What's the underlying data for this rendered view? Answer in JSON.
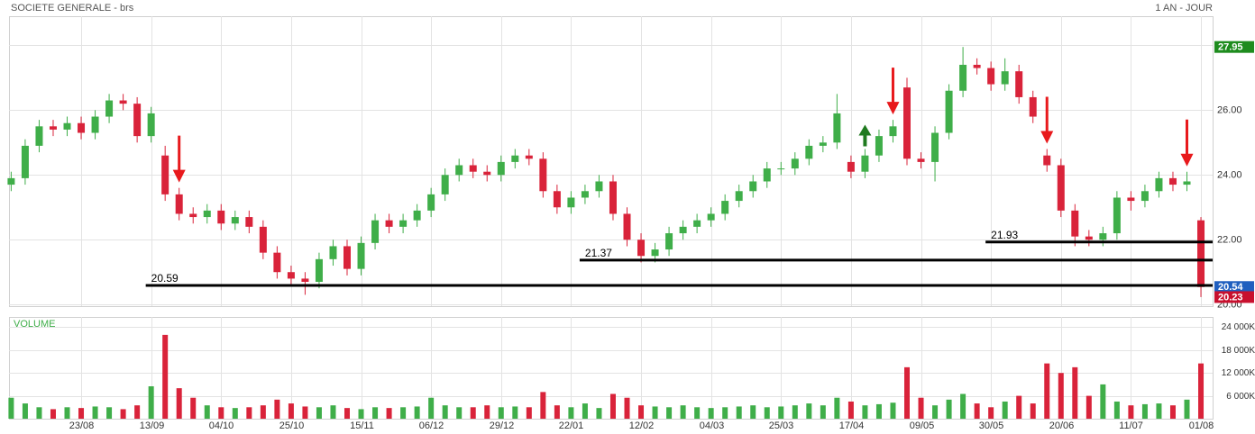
{
  "chart_data": {
    "type": "candlestick",
    "title": "SOCIETE GENERALE - brs",
    "period": "1 AN - JOUR",
    "volume_title": "VOLUME",
    "up_color": "#3fae49",
    "down_color": "#d9233a",
    "grid": true,
    "categories": [
      null,
      null,
      null,
      null,
      null,
      "23/08",
      null,
      null,
      null,
      null,
      "13/09",
      null,
      null,
      null,
      null,
      "04/10",
      null,
      null,
      null,
      null,
      "25/10",
      null,
      null,
      null,
      null,
      "15/11",
      null,
      null,
      null,
      null,
      "06/12",
      null,
      null,
      null,
      null,
      "29/12",
      null,
      null,
      null,
      null,
      "22/01",
      null,
      null,
      null,
      null,
      "12/02",
      null,
      null,
      null,
      null,
      "04/03",
      null,
      null,
      null,
      null,
      "25/03",
      null,
      null,
      null,
      null,
      "17/04",
      null,
      null,
      null,
      null,
      "09/05",
      null,
      null,
      null,
      null,
      "30/05",
      null,
      null,
      null,
      null,
      "20/06",
      null,
      null,
      null,
      null,
      "11/07",
      null,
      null,
      null,
      null,
      "01/08"
    ],
    "open": [
      23.7,
      23.9,
      24.9,
      25.5,
      25.4,
      25.6,
      25.3,
      25.8,
      26.3,
      26.2,
      25.2,
      24.6,
      23.4,
      22.8,
      22.7,
      22.9,
      22.5,
      22.7,
      22.4,
      21.6,
      21.0,
      20.8,
      20.7,
      21.4,
      21.8,
      21.1,
      21.9,
      22.6,
      22.4,
      22.6,
      22.9,
      23.4,
      24.0,
      24.3,
      24.1,
      24.0,
      24.4,
      24.6,
      24.5,
      23.5,
      23.0,
      23.3,
      23.5,
      23.8,
      22.8,
      22.0,
      21.5,
      21.7,
      22.2,
      22.4,
      22.6,
      22.8,
      23.2,
      23.5,
      23.8,
      24.2,
      24.2,
      24.5,
      24.9,
      25.0,
      24.4,
      24.1,
      24.6,
      25.2,
      26.7,
      24.5,
      24.4,
      25.3,
      26.6,
      27.4,
      27.3,
      26.8,
      27.2,
      26.4,
      24.6,
      24.3,
      22.9,
      22.1,
      22.0,
      22.2,
      23.3,
      23.2,
      23.5,
      23.9,
      23.7,
      22.6
    ],
    "high": [
      24.1,
      25.1,
      25.7,
      25.7,
      25.8,
      25.8,
      26.0,
      26.5,
      26.5,
      26.4,
      26.1,
      24.9,
      23.6,
      23.0,
      23.1,
      23.1,
      22.9,
      22.9,
      22.6,
      21.8,
      21.2,
      21.0,
      21.6,
      22.0,
      22.0,
      22.1,
      22.8,
      22.8,
      22.8,
      23.1,
      23.6,
      24.2,
      24.5,
      24.5,
      24.3,
      24.6,
      24.8,
      24.8,
      24.7,
      23.7,
      23.5,
      23.7,
      24.0,
      24.0,
      23.0,
      22.2,
      21.9,
      22.4,
      22.6,
      22.8,
      23.0,
      23.4,
      23.7,
      24.0,
      24.4,
      24.4,
      24.7,
      25.1,
      25.2,
      26.5,
      24.6,
      24.8,
      25.4,
      25.7,
      27.0,
      24.7,
      25.5,
      26.8,
      27.95,
      27.6,
      27.5,
      27.6,
      27.4,
      26.6,
      24.8,
      24.5,
      23.1,
      22.3,
      22.4,
      23.5,
      23.5,
      23.7,
      24.1,
      24.1,
      24.1,
      22.7
    ],
    "low": [
      23.5,
      23.7,
      24.7,
      25.2,
      25.2,
      25.1,
      25.1,
      25.6,
      26.0,
      25.0,
      25.0,
      23.2,
      22.6,
      22.5,
      22.5,
      22.3,
      22.3,
      22.2,
      21.4,
      20.8,
      20.6,
      20.3,
      20.5,
      21.2,
      20.9,
      20.9,
      21.7,
      22.2,
      22.2,
      22.4,
      22.7,
      23.2,
      23.8,
      23.9,
      23.8,
      23.8,
      24.2,
      24.3,
      23.3,
      22.8,
      22.8,
      23.1,
      23.3,
      22.6,
      21.8,
      21.3,
      21.3,
      21.5,
      22.0,
      22.2,
      22.4,
      22.6,
      23.0,
      23.3,
      23.6,
      24.0,
      24.0,
      24.3,
      24.7,
      24.8,
      23.9,
      23.9,
      24.4,
      25.0,
      24.3,
      24.2,
      23.8,
      25.1,
      26.4,
      27.1,
      26.6,
      26.6,
      26.2,
      25.6,
      24.1,
      22.7,
      21.8,
      21.8,
      21.8,
      22.0,
      22.9,
      23.0,
      23.3,
      23.5,
      23.5,
      20.23
    ],
    "close": [
      23.9,
      24.9,
      25.5,
      25.4,
      25.6,
      25.3,
      25.8,
      26.3,
      26.2,
      25.2,
      25.9,
      23.4,
      22.8,
      22.7,
      22.9,
      22.5,
      22.7,
      22.4,
      21.6,
      21.0,
      20.8,
      20.7,
      21.4,
      21.8,
      21.1,
      21.9,
      22.6,
      22.4,
      22.6,
      22.9,
      23.4,
      24.0,
      24.3,
      24.1,
      24.0,
      24.4,
      24.6,
      24.5,
      23.5,
      23.0,
      23.3,
      23.5,
      23.8,
      22.8,
      22.0,
      21.5,
      21.7,
      22.2,
      22.4,
      22.6,
      22.8,
      23.2,
      23.5,
      23.8,
      24.2,
      24.2,
      24.5,
      24.9,
      25.0,
      25.9,
      24.1,
      24.6,
      25.2,
      25.5,
      24.5,
      24.4,
      25.3,
      26.6,
      27.4,
      27.3,
      26.8,
      27.2,
      26.4,
      25.8,
      24.3,
      22.9,
      22.1,
      22.0,
      22.2,
      23.3,
      23.2,
      23.5,
      23.9,
      23.7,
      23.8,
      20.54
    ],
    "volume": [
      5500,
      4000,
      3000,
      2500,
      3000,
      2800,
      3200,
      3000,
      2500,
      3500,
      8500,
      22000,
      8000,
      5500,
      3500,
      3000,
      2800,
      3000,
      3500,
      5000,
      4000,
      3200,
      3000,
      3500,
      2800,
      2500,
      3000,
      2800,
      3000,
      3200,
      5500,
      3500,
      3000,
      3000,
      3500,
      3000,
      3200,
      3000,
      7000,
      3500,
      3000,
      4000,
      2800,
      6500,
      5500,
      3500,
      3200,
      3000,
      3500,
      3000,
      2800,
      3000,
      3200,
      3500,
      3000,
      3200,
      3500,
      4000,
      3500,
      5500,
      4500,
      3500,
      3800,
      4200,
      13500,
      5500,
      3500,
      5000,
      6500,
      4000,
      3000,
      4500,
      6000,
      4000,
      14500,
      12000,
      13500,
      6000,
      9000,
      4500,
      3500,
      3800,
      4000,
      3500,
      5000,
      14500
    ],
    "ylim": [
      19.95,
      28.9
    ],
    "yticks": [
      {
        "value": 20,
        "label": "20.00"
      },
      {
        "value": 22,
        "label": "22.00"
      },
      {
        "value": 24,
        "label": "24.00"
      },
      {
        "value": 26,
        "label": "26.00"
      },
      {
        "value": 28,
        "label": "28.00"
      }
    ],
    "volume_ylim": [
      0,
      26700
    ],
    "volume_yticks": [
      {
        "value": 6000,
        "label": "6 000K"
      },
      {
        "value": 12000,
        "label": "12 000K"
      },
      {
        "value": 18000,
        "label": "18 000K"
      },
      {
        "value": 24000,
        "label": "24 000K"
      }
    ],
    "badges": [
      {
        "value": 27.95,
        "color": "#1e8c1e"
      },
      {
        "value": 20.54,
        "color": "#1f5fbf"
      },
      {
        "value": 20.23,
        "color": "#c8102e"
      }
    ],
    "levels": [
      {
        "value": 20.59,
        "from": 10
      },
      {
        "value": 21.37,
        "from": 41
      },
      {
        "value": 21.93,
        "from": 70
      }
    ],
    "arrows": [
      {
        "index": 12,
        "direction": "down",
        "color": "#e8191c"
      },
      {
        "index": 61,
        "direction": "up",
        "color": "#1f7a1f"
      },
      {
        "index": 63,
        "direction": "down",
        "color": "#e8191c"
      },
      {
        "index": 74,
        "direction": "down",
        "color": "#e8191c"
      },
      {
        "index": 84,
        "direction": "down",
        "color": "#e8191c"
      }
    ]
  }
}
